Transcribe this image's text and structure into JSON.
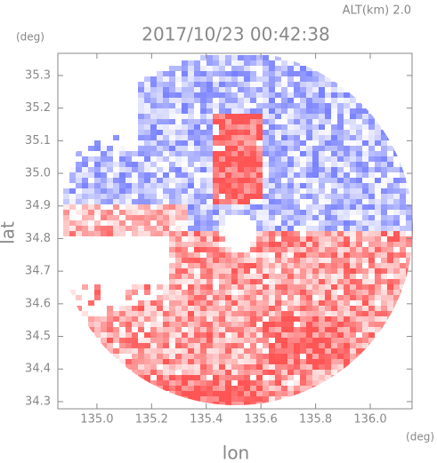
{
  "chart_data": {
    "type": "radar-map",
    "title": "2017/10/23 00:42:38",
    "altitude_label": "ALT(km) 2.0",
    "y_unit": "(deg)",
    "x_unit": "(deg)",
    "x_label": "lon",
    "y_label": "lat",
    "xlim": [
      134.857,
      136.153
    ],
    "ylim": [
      34.278,
      35.368
    ],
    "xticks": [
      {
        "value": 135.0,
        "label": "135.0"
      },
      {
        "value": 135.2,
        "label": "135.2"
      },
      {
        "value": 135.4,
        "label": "135.4"
      },
      {
        "value": 135.6,
        "label": "135.6"
      },
      {
        "value": 135.8,
        "label": "135.8"
      },
      {
        "value": 136.0,
        "label": "136.0"
      }
    ],
    "yticks": [
      {
        "value": 34.3,
        "label": "34.3"
      },
      {
        "value": 34.4,
        "label": "34.4"
      },
      {
        "value": 34.5,
        "label": "34.5"
      },
      {
        "value": 34.6,
        "label": "34.6"
      },
      {
        "value": 34.7,
        "label": "34.7"
      },
      {
        "value": 34.8,
        "label": "34.8"
      },
      {
        "value": 34.9,
        "label": "34.9"
      },
      {
        "value": 35.0,
        "label": "35.0"
      },
      {
        "value": 35.1,
        "label": "35.1"
      },
      {
        "value": 35.2,
        "label": "35.2"
      },
      {
        "value": 35.3,
        "label": "35.3"
      }
    ],
    "grid": false
  }
}
